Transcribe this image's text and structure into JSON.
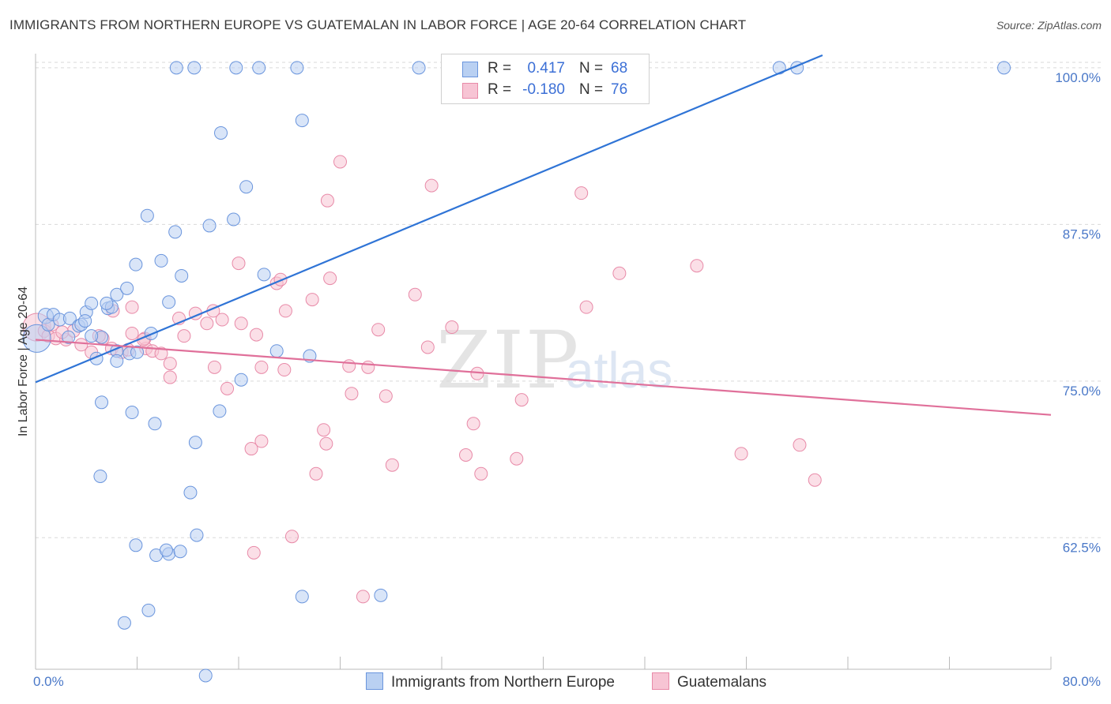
{
  "header": {
    "title": "IMMIGRANTS FROM NORTHERN EUROPE VS GUATEMALAN IN LABOR FORCE | AGE 20-64 CORRELATION CHART",
    "source": "Source: ZipAtlas.com"
  },
  "watermark": {
    "zip": "ZIP",
    "atlas": "atlas"
  },
  "colors": {
    "blue_fill": "#b9d0f2",
    "blue_stroke": "#6a95dd",
    "blue_line": "#2f74d6",
    "pink_fill": "#f7c4d4",
    "pink_stroke": "#e88aa8",
    "pink_line": "#e0709a",
    "grid": "#d9d9d9",
    "tick_text": "#4a78c8"
  },
  "chart_data": {
    "type": "scatter",
    "title": "IMMIGRANTS FROM NORTHERN EUROPE VS GUATEMALAN IN LABOR FORCE | AGE 20-64 CORRELATION CHART",
    "xlabel": "",
    "ylabel": "In Labor Force | Age 20-64",
    "xlim": [
      0,
      80
    ],
    "ylim": [
      52.0,
      101.0
    ],
    "x_tick_labels": [
      {
        "value": 0,
        "label": "0.0%"
      },
      {
        "value": 80,
        "label": "80.0%"
      }
    ],
    "y_ticks": [
      {
        "value": 100.0,
        "label": "100.0%"
      },
      {
        "value": 87.5,
        "label": "87.5%"
      },
      {
        "value": 75.0,
        "label": "75.0%"
      },
      {
        "value": 62.5,
        "label": "62.5%"
      }
    ],
    "legend": [
      {
        "series": "Immigrants from Northern Europe",
        "r_label": "R =",
        "r": "0.417",
        "n_label": "N =",
        "n": "68"
      },
      {
        "series": "Guatemalans",
        "r_label": "R =",
        "r": "-0.180",
        "n_label": "N =",
        "n": "76"
      }
    ],
    "series": [
      {
        "name": "Immigrants from Northern Europe",
        "color": "blue",
        "trend": {
          "x0": 0,
          "y0": 74.9,
          "x1": 62,
          "y1": 101.0
        },
        "points": [
          [
            0.1,
            78.4,
            2.2
          ],
          [
            0.8,
            80.2,
            1.2
          ],
          [
            1.0,
            79.5,
            1.0
          ],
          [
            1.4,
            80.3,
            1.0
          ],
          [
            1.9,
            79.9,
            1.0
          ],
          [
            2.7,
            80.0,
            1.0
          ],
          [
            3.4,
            79.4,
            1.0
          ],
          [
            3.6,
            79.5,
            1.0
          ],
          [
            4.0,
            80.5,
            1.0
          ],
          [
            3.9,
            79.8,
            1.0
          ],
          [
            4.4,
            81.2,
            1.0
          ],
          [
            5.2,
            78.5,
            1.0
          ],
          [
            5.7,
            80.8,
            1.0
          ],
          [
            6.0,
            80.9,
            1.0
          ],
          [
            5.6,
            81.2,
            1.0
          ],
          [
            6.4,
            81.9,
            1.0
          ],
          [
            4.8,
            76.8,
            1.0
          ],
          [
            6.4,
            77.4,
            1.0
          ],
          [
            6.4,
            76.6,
            1.0
          ],
          [
            7.4,
            77.2,
            1.0
          ],
          [
            8.0,
            77.3,
            1.0
          ],
          [
            7.2,
            82.4,
            1.0
          ],
          [
            7.9,
            84.3,
            1.0
          ],
          [
            8.8,
            88.2,
            1.0
          ],
          [
            9.9,
            84.6,
            1.0
          ],
          [
            10.5,
            81.3,
            1.0
          ],
          [
            11.0,
            86.9,
            1.0
          ],
          [
            11.5,
            83.4,
            1.0
          ],
          [
            13.7,
            87.4,
            1.0
          ],
          [
            14.6,
            94.8,
            1.0
          ],
          [
            15.6,
            87.9,
            1.0
          ],
          [
            16.6,
            90.5,
            1.0
          ],
          [
            18.0,
            83.5,
            1.0
          ],
          [
            19.0,
            77.4,
            1.0
          ],
          [
            21.0,
            95.8,
            1.0
          ],
          [
            21.6,
            77.0,
            1.0
          ],
          [
            11.1,
            100.0,
            1.0
          ],
          [
            12.5,
            100.0,
            1.0
          ],
          [
            15.8,
            100.0,
            1.0
          ],
          [
            17.6,
            100.0,
            1.0
          ],
          [
            20.6,
            100.0,
            1.0
          ],
          [
            30.2,
            100.0,
            1.0
          ],
          [
            32.8,
            100.0,
            1.0
          ],
          [
            58.6,
            100.0,
            1.0
          ],
          [
            60.0,
            100.0,
            1.0
          ],
          [
            76.3,
            100.0,
            1.0
          ],
          [
            5.2,
            73.3,
            1.0
          ],
          [
            7.6,
            72.5,
            1.0
          ],
          [
            9.4,
            71.6,
            1.0
          ],
          [
            12.6,
            70.1,
            1.0
          ],
          [
            14.5,
            72.6,
            1.0
          ],
          [
            16.2,
            75.1,
            1.0
          ],
          [
            5.1,
            67.4,
            1.0
          ],
          [
            12.2,
            66.1,
            1.0
          ],
          [
            7.9,
            61.9,
            1.0
          ],
          [
            12.7,
            62.7,
            1.0
          ],
          [
            9.5,
            61.1,
            1.0
          ],
          [
            10.5,
            61.2,
            1.0
          ],
          [
            10.3,
            61.5,
            1.0
          ],
          [
            11.4,
            61.4,
            1.0
          ],
          [
            21.0,
            57.8,
            1.0
          ],
          [
            27.2,
            57.9,
            1.0
          ],
          [
            8.9,
            56.7,
            1.0
          ],
          [
            7.0,
            55.7,
            1.0
          ],
          [
            13.4,
            51.5,
            1.0
          ],
          [
            9.1,
            78.8,
            1.0
          ],
          [
            2.6,
            78.5,
            1.0
          ],
          [
            4.4,
            78.6,
            1.0
          ]
        ]
      },
      {
        "name": "Guatemalans",
        "color": "pink",
        "trend": {
          "x0": 0,
          "y0": 78.3,
          "x1": 80,
          "y1": 72.3
        },
        "points": [
          [
            0.1,
            79.3,
            2.2
          ],
          [
            0.7,
            79.0,
            1.0
          ],
          [
            1.0,
            78.6,
            1.0
          ],
          [
            1.6,
            78.4,
            1.0
          ],
          [
            2.4,
            78.3,
            1.0
          ],
          [
            3.0,
            79.0,
            1.0
          ],
          [
            3.6,
            77.9,
            1.0
          ],
          [
            4.4,
            77.3,
            1.0
          ],
          [
            5.3,
            78.4,
            1.0
          ],
          [
            6.0,
            77.6,
            1.0
          ],
          [
            6.8,
            77.3,
            1.0
          ],
          [
            7.3,
            77.5,
            1.0
          ],
          [
            7.6,
            78.8,
            1.0
          ],
          [
            8.7,
            77.6,
            1.0
          ],
          [
            8.6,
            78.4,
            1.0
          ],
          [
            9.2,
            77.4,
            1.0
          ],
          [
            9.9,
            77.2,
            1.0
          ],
          [
            10.6,
            76.4,
            1.0
          ],
          [
            11.7,
            78.6,
            1.0
          ],
          [
            12.6,
            80.4,
            1.0
          ],
          [
            13.5,
            79.6,
            1.0
          ],
          [
            14.0,
            80.6,
            1.0
          ],
          [
            14.7,
            79.9,
            1.0
          ],
          [
            16.2,
            79.6,
            1.0
          ],
          [
            17.4,
            78.7,
            1.0
          ],
          [
            19.0,
            82.8,
            1.0
          ],
          [
            19.3,
            83.1,
            1.0
          ],
          [
            19.7,
            80.6,
            1.0
          ],
          [
            21.8,
            81.5,
            1.0
          ],
          [
            23.2,
            83.2,
            1.0
          ],
          [
            24.0,
            92.5,
            1.0
          ],
          [
            23.0,
            89.4,
            1.0
          ],
          [
            31.2,
            90.6,
            1.0
          ],
          [
            29.9,
            81.9,
            1.0
          ],
          [
            27.0,
            79.1,
            1.0
          ],
          [
            30.9,
            77.7,
            1.0
          ],
          [
            32.8,
            79.3,
            1.0
          ],
          [
            34.8,
            75.6,
            1.0
          ],
          [
            38.3,
            73.5,
            1.0
          ],
          [
            43.0,
            90.0,
            1.0
          ],
          [
            43.4,
            80.9,
            1.0
          ],
          [
            46.0,
            83.6,
            1.0
          ],
          [
            52.1,
            84.2,
            1.0
          ],
          [
            16.0,
            84.4,
            1.0
          ],
          [
            6.1,
            80.6,
            1.0
          ],
          [
            7.6,
            80.9,
            1.0
          ],
          [
            10.6,
            75.3,
            1.0
          ],
          [
            14.1,
            76.1,
            1.0
          ],
          [
            15.1,
            74.4,
            1.0
          ],
          [
            17.8,
            76.1,
            1.0
          ],
          [
            19.6,
            75.9,
            1.0
          ],
          [
            24.7,
            76.2,
            1.0
          ],
          [
            26.2,
            76.1,
            1.0
          ],
          [
            24.9,
            74.0,
            1.0
          ],
          [
            27.6,
            73.8,
            1.0
          ],
          [
            22.7,
            71.1,
            1.0
          ],
          [
            22.9,
            70.0,
            1.0
          ],
          [
            34.5,
            71.6,
            1.0
          ],
          [
            17.0,
            69.6,
            1.0
          ],
          [
            17.8,
            70.2,
            1.0
          ],
          [
            28.1,
            68.3,
            1.0
          ],
          [
            33.9,
            69.1,
            1.0
          ],
          [
            37.9,
            68.8,
            1.0
          ],
          [
            55.6,
            69.2,
            1.0
          ],
          [
            60.2,
            69.9,
            1.0
          ],
          [
            22.1,
            67.6,
            1.0
          ],
          [
            35.1,
            67.6,
            1.0
          ],
          [
            61.4,
            67.1,
            1.0
          ],
          [
            17.2,
            61.3,
            1.0
          ],
          [
            20.2,
            62.6,
            1.0
          ],
          [
            25.8,
            57.8,
            1.0
          ],
          [
            1.3,
            79.5,
            1.0
          ],
          [
            2.1,
            78.9,
            1.0
          ],
          [
            11.3,
            80.0,
            1.0
          ],
          [
            5.0,
            78.6,
            1.0
          ],
          [
            8.5,
            78.3,
            1.0
          ]
        ]
      }
    ]
  }
}
